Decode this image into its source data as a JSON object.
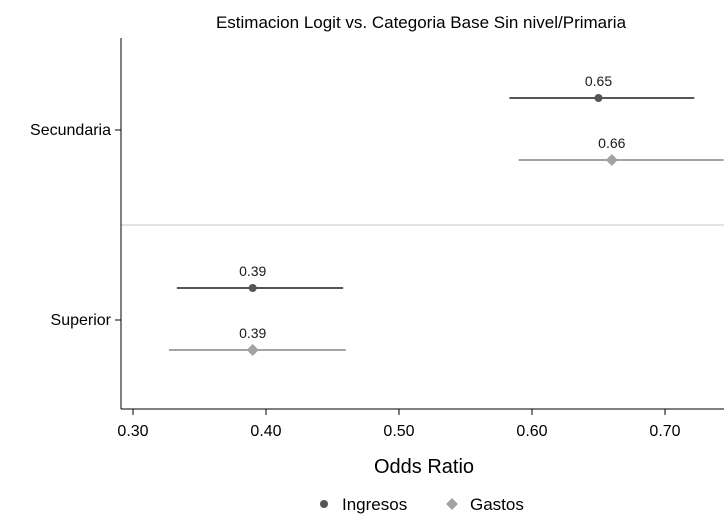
{
  "chart_data": {
    "type": "scatter",
    "subtype": "coefficient-plot-with-confidence-intervals",
    "title": "Estimacion Logit vs. Categoria Base Sin nivel/Primaria",
    "xlabel": "Odds Ratio",
    "ylabel": "",
    "xlim": [
      0.295,
      0.745
    ],
    "xticks": [
      0.3,
      0.4,
      0.5,
      0.6,
      0.7
    ],
    "xtick_labels": [
      "0.30",
      "0.40",
      "0.50",
      "0.60",
      "0.70"
    ],
    "grid": false,
    "legend_position": "bottom",
    "categories": [
      "Secundaria",
      "Superior"
    ],
    "series": [
      {
        "name": "Ingresos",
        "marker": "circle",
        "color": "#555555",
        "points": [
          {
            "category": "Secundaria",
            "estimate": 0.65,
            "ci_low": 0.583,
            "ci_high": 0.722,
            "label": "0.65"
          },
          {
            "category": "Superior",
            "estimate": 0.39,
            "ci_low": 0.333,
            "ci_high": 0.458,
            "label": "0.39"
          }
        ]
      },
      {
        "name": "Gastos",
        "marker": "diamond",
        "color": "#a3a3a3",
        "points": [
          {
            "category": "Secundaria",
            "estimate": 0.66,
            "ci_low": 0.59,
            "ci_high": 0.744,
            "label": "0.66"
          },
          {
            "category": "Superior",
            "estimate": 0.39,
            "ci_low": 0.327,
            "ci_high": 0.46,
            "label": "0.39"
          }
        ]
      }
    ]
  }
}
